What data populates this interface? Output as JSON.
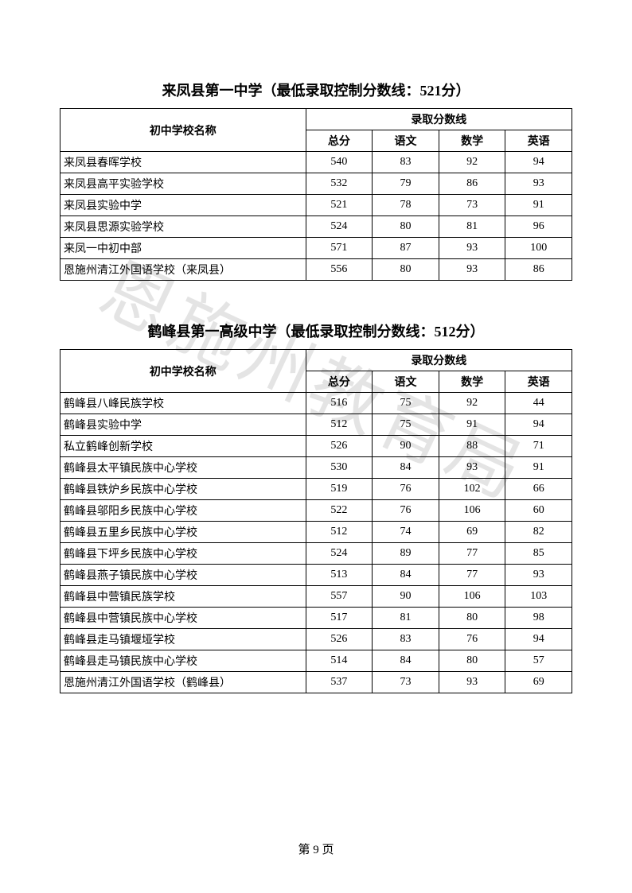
{
  "watermark_text": "恩施州教育局",
  "page_number": "第 9 页",
  "tables": [
    {
      "title": "来凤县第一中学（最低录取控制分数线：521分）",
      "header_school": "初中学校名称",
      "header_group": "录取分数线",
      "subheaders": {
        "total": "总分",
        "chinese": "语文",
        "math": "数学",
        "english": "英语"
      },
      "rows": [
        {
          "school": "来凤县春晖学校",
          "total": "540",
          "chinese": "83",
          "math": "92",
          "english": "94"
        },
        {
          "school": "来凤县高平实验学校",
          "total": "532",
          "chinese": "79",
          "math": "86",
          "english": "93"
        },
        {
          "school": "来凤县实验中学",
          "total": "521",
          "chinese": "78",
          "math": "73",
          "english": "91"
        },
        {
          "school": "来凤县思源实验学校",
          "total": "524",
          "chinese": "80",
          "math": "81",
          "english": "96"
        },
        {
          "school": "来凤一中初中部",
          "total": "571",
          "chinese": "87",
          "math": "93",
          "english": "100"
        },
        {
          "school": "恩施州清江外国语学校（来凤县）",
          "total": "556",
          "chinese": "80",
          "math": "93",
          "english": "86"
        }
      ]
    },
    {
      "title": "鹤峰县第一高级中学（最低录取控制分数线：512分）",
      "header_school": "初中学校名称",
      "header_group": "录取分数线",
      "subheaders": {
        "total": "总分",
        "chinese": "语文",
        "math": "数学",
        "english": "英语"
      },
      "rows": [
        {
          "school": "鹤峰县八峰民族学校",
          "total": "516",
          "chinese": "75",
          "math": "92",
          "english": "44"
        },
        {
          "school": "鹤峰县实验中学",
          "total": "512",
          "chinese": "75",
          "math": "91",
          "english": "94"
        },
        {
          "school": "私立鹤峰创新学校",
          "total": "526",
          "chinese": "90",
          "math": "88",
          "english": "71"
        },
        {
          "school": "鹤峰县太平镇民族中心学校",
          "total": "530",
          "chinese": "84",
          "math": "93",
          "english": "91"
        },
        {
          "school": "鹤峰县铁炉乡民族中心学校",
          "total": "519",
          "chinese": "76",
          "math": "102",
          "english": "66"
        },
        {
          "school": "鹤峰县邬阳乡民族中心学校",
          "total": "522",
          "chinese": "76",
          "math": "106",
          "english": "60"
        },
        {
          "school": "鹤峰县五里乡民族中心学校",
          "total": "512",
          "chinese": "74",
          "math": "69",
          "english": "82"
        },
        {
          "school": "鹤峰县下坪乡民族中心学校",
          "total": "524",
          "chinese": "89",
          "math": "77",
          "english": "85"
        },
        {
          "school": "鹤峰县燕子镇民族中心学校",
          "total": "513",
          "chinese": "84",
          "math": "77",
          "english": "93"
        },
        {
          "school": "鹤峰县中营镇民族学校",
          "total": "557",
          "chinese": "90",
          "math": "106",
          "english": "103"
        },
        {
          "school": "鹤峰县中营镇民族中心学校",
          "total": "517",
          "chinese": "81",
          "math": "80",
          "english": "98"
        },
        {
          "school": "鹤峰县走马镇堰垭学校",
          "total": "526",
          "chinese": "83",
          "math": "76",
          "english": "94"
        },
        {
          "school": "鹤峰县走马镇民族中心学校",
          "total": "514",
          "chinese": "84",
          "math": "80",
          "english": "57"
        },
        {
          "school": "恩施州清江外国语学校（鹤峰县）",
          "total": "537",
          "chinese": "73",
          "math": "93",
          "english": "69"
        }
      ]
    }
  ]
}
